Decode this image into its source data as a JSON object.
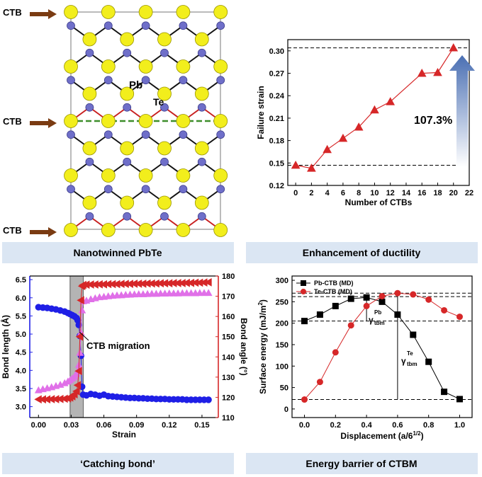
{
  "panels": {
    "structure": {
      "caption": "Nanotwinned PbTe",
      "ctb_label": "CTB",
      "pb_label": "Pb",
      "te_label": "Te"
    },
    "ductility": {
      "caption": "Enhancement of ductility",
      "annotation": "107.3%"
    },
    "bond": {
      "caption": "‘Catching bond’",
      "annotation": "CTB migration"
    },
    "barrier": {
      "caption": "Energy barrier of CTBM",
      "gamma_pb": "γ",
      "gamma_pb_sup": "Pb",
      "gamma_pb_sub": "tbm",
      "gamma_te": "γ",
      "gamma_te_sup": "Te",
      "gamma_te_sub": "tbm"
    }
  },
  "colors": {
    "banner": "#dbe6f3",
    "pb": "#f2ee1c",
    "te": "#6f6fc9",
    "red": "#d62728",
    "blue": "#1f1fe6",
    "magenta": "#e070e8",
    "twin": "#3e8e2a",
    "arrow": "#7a3b12"
  },
  "chart_data": [
    {
      "type": "line",
      "id": "ductility",
      "xlabel": "Number of CTBs",
      "ylabel": "Failure strain",
      "xlim": [
        -1,
        22
      ],
      "ylim": [
        0.12,
        0.315
      ],
      "xticks": [
        0,
        2,
        4,
        6,
        8,
        10,
        12,
        14,
        16,
        18,
        20,
        22
      ],
      "yticks": [
        0.12,
        0.15,
        0.18,
        0.21,
        0.24,
        0.27,
        0.3
      ],
      "x": [
        0,
        2,
        4,
        6,
        8,
        10,
        12,
        16,
        18,
        20
      ],
      "y": [
        0.147,
        0.143,
        0.168,
        0.183,
        0.198,
        0.221,
        0.232,
        0.27,
        0.271,
        0.304
      ],
      "reference_lines": [
        0.147,
        0.304
      ]
    },
    {
      "type": "scatter",
      "id": "bond",
      "xlabel": "Strain",
      "ylabel_left": "Bond length (Å)",
      "ylabel_right": "Bond angle (°)",
      "xlim": [
        -0.008,
        0.165
      ],
      "ylim_left": [
        2.7,
        6.6
      ],
      "ylim_right": [
        110,
        180
      ],
      "xticks": [
        "0.00",
        "0.03",
        "0.06",
        "0.09",
        "0.12",
        "0.15"
      ],
      "yticks_left": [
        "3.0",
        "3.5",
        "4.0",
        "4.5",
        "5.0",
        "5.5",
        "6.0",
        "6.5"
      ],
      "yticks_right": [
        "110",
        "120",
        "130",
        "140",
        "150",
        "160",
        "170",
        "180"
      ],
      "shaded_region": [
        0.029,
        0.041
      ],
      "series": [
        {
          "axis": "left",
          "marker": "circle",
          "x": [
            0.0,
            0.004,
            0.008,
            0.012,
            0.016,
            0.02,
            0.024,
            0.027,
            0.029,
            0.031,
            0.033,
            0.035,
            0.036,
            0.037,
            0.038,
            0.039,
            0.04,
            0.041,
            0.044,
            0.048,
            0.052,
            0.056,
            0.06,
            0.064,
            0.068,
            0.072,
            0.076,
            0.08,
            0.084,
            0.088,
            0.092,
            0.096,
            0.1,
            0.104,
            0.108,
            0.112,
            0.116,
            0.12,
            0.124,
            0.128,
            0.132,
            0.136,
            0.14,
            0.144,
            0.148,
            0.152,
            0.156
          ],
          "y": [
            5.74,
            5.73,
            5.72,
            5.7,
            5.68,
            5.65,
            5.62,
            5.58,
            5.55,
            5.52,
            5.49,
            5.44,
            5.38,
            5.25,
            4.95,
            4.4,
            3.55,
            3.33,
            3.31,
            3.35,
            3.33,
            3.3,
            3.33,
            3.29,
            3.28,
            3.27,
            3.26,
            3.25,
            3.24,
            3.24,
            3.23,
            3.23,
            3.22,
            3.22,
            3.21,
            3.21,
            3.21,
            3.2,
            3.2,
            3.2,
            3.2,
            3.19,
            3.19,
            3.19,
            3.19,
            3.19,
            3.19
          ]
        },
        {
          "axis": "right",
          "marker": "triangle-up",
          "x": [
            0.0,
            0.004,
            0.008,
            0.012,
            0.016,
            0.02,
            0.024,
            0.027,
            0.029,
            0.031,
            0.033,
            0.035,
            0.036,
            0.037,
            0.038,
            0.039,
            0.04,
            0.041,
            0.044,
            0.048,
            0.052,
            0.056,
            0.06,
            0.064,
            0.068,
            0.072,
            0.076,
            0.08,
            0.084,
            0.088,
            0.092,
            0.096,
            0.1,
            0.104,
            0.108,
            0.112,
            0.116,
            0.12,
            0.124,
            0.128,
            0.132,
            0.136,
            0.14,
            0.144,
            0.148,
            0.152,
            0.156
          ],
          "y": [
            123.5,
            124.0,
            124.5,
            125.0,
            125.6,
            126.2,
            127.0,
            127.8,
            128.5,
            129.3,
            130.2,
            131.5,
            133.0,
            136.0,
            142.0,
            152.0,
            163.0,
            167.5,
            167.8,
            168.5,
            169.0,
            169.5,
            169.7,
            170.0,
            170.2,
            170.4,
            170.5,
            170.7,
            170.8,
            170.9,
            171.0,
            171.0,
            171.1,
            171.2,
            171.2,
            171.3,
            171.3,
            171.4,
            171.4,
            171.4,
            171.5,
            171.5,
            171.5,
            171.5,
            171.6,
            171.6,
            171.6
          ]
        },
        {
          "axis": "right",
          "marker": "triangle-left",
          "x": [
            0.0,
            0.004,
            0.008,
            0.012,
            0.016,
            0.02,
            0.024,
            0.027,
            0.029,
            0.031,
            0.033,
            0.035,
            0.036,
            0.037,
            0.038,
            0.039,
            0.04,
            0.041,
            0.044,
            0.048,
            0.052,
            0.056,
            0.06,
            0.064,
            0.068,
            0.072,
            0.076,
            0.08,
            0.084,
            0.088,
            0.092,
            0.096,
            0.1,
            0.104,
            0.108,
            0.112,
            0.116,
            0.12,
            0.124,
            0.128,
            0.132,
            0.136,
            0.14,
            0.144,
            0.148,
            0.152,
            0.156
          ],
          "y": [
            119.0,
            119.0,
            119.0,
            119.1,
            119.1,
            119.2,
            119.3,
            119.5,
            119.9,
            120.5,
            121.5,
            123.0,
            126.0,
            133.0,
            150.0,
            168.0,
            175.0,
            175.6,
            175.7,
            175.8,
            175.8,
            175.9,
            175.9,
            176.0,
            176.0,
            176.0,
            176.1,
            176.1,
            176.1,
            176.2,
            176.2,
            176.2,
            176.3,
            176.3,
            176.3,
            176.4,
            176.4,
            176.4,
            176.5,
            176.5,
            176.5,
            176.6,
            176.6,
            176.7,
            176.7,
            176.8,
            176.9
          ]
        }
      ]
    },
    {
      "type": "line",
      "id": "barrier",
      "xlabel": "Displacement (a/6",
      "xlabel_sup": "1/2",
      "xlabel_end": ")",
      "ylabel": "Surface energy (mJ/m",
      "ylabel_sup": "2",
      "ylabel_end": ")",
      "xlim": [
        -0.08,
        1.08
      ],
      "ylim": [
        -20,
        310
      ],
      "xticks": [
        "0.0",
        "0.2",
        "0.4",
        "0.6",
        "0.8",
        "1.0"
      ],
      "yticks": [
        "0",
        "50",
        "100",
        "150",
        "200",
        "250",
        "300"
      ],
      "reference_lines": [
        22,
        205,
        262,
        270
      ],
      "legend": "top-left",
      "series": [
        {
          "name": "Pb-CTB (MD)",
          "marker": "square",
          "x": [
            0.0,
            0.1,
            0.2,
            0.3,
            0.4,
            0.5,
            0.6,
            0.7,
            0.8,
            0.9,
            1.0
          ],
          "y": [
            205,
            220,
            240,
            257,
            260,
            250,
            220,
            173,
            110,
            40,
            23
          ]
        },
        {
          "name": "Te-CTB (MD)",
          "marker": "circle",
          "x": [
            0.0,
            0.1,
            0.2,
            0.3,
            0.4,
            0.5,
            0.6,
            0.7,
            0.8,
            0.9,
            1.0
          ],
          "y": [
            22,
            63,
            132,
            195,
            240,
            263,
            270,
            267,
            255,
            230,
            215
          ]
        }
      ]
    }
  ]
}
